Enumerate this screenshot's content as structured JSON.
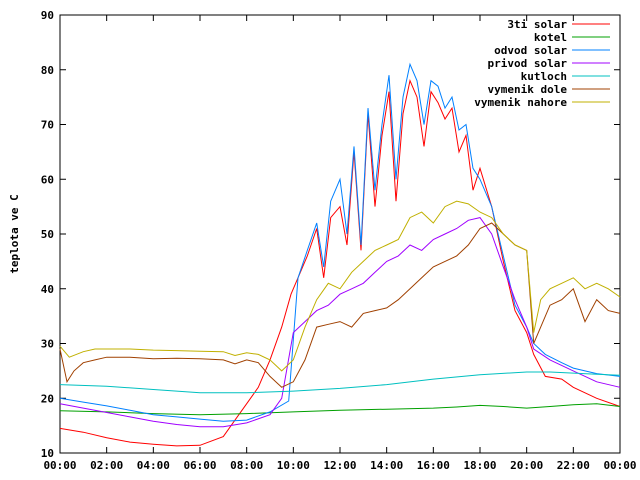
{
  "chart_data": {
    "type": "line",
    "title": "",
    "xlabel": "",
    "ylabel": "teplota ve C",
    "xlim": [
      0,
      24
    ],
    "ylim": [
      10,
      90
    ],
    "grid": false,
    "legend_position": "top-right",
    "x_ticks": [
      0,
      2,
      4,
      6,
      8,
      10,
      12,
      14,
      16,
      18,
      20,
      22,
      24
    ],
    "x_tick_labels": [
      "00:00",
      "02:00",
      "04:00",
      "06:00",
      "08:00",
      "10:00",
      "12:00",
      "14:00",
      "16:00",
      "18:00",
      "20:00",
      "22:00",
      "00:00"
    ],
    "y_ticks": [
      10,
      20,
      30,
      40,
      50,
      60,
      70,
      80,
      90
    ],
    "y_tick_labels": [
      "10",
      "20",
      "30",
      "40",
      "50",
      "60",
      "70",
      "80",
      "90"
    ],
    "series": [
      {
        "name": "3ti solar",
        "color": "#ff0000",
        "x": [
          0,
          1,
          2,
          3,
          4,
          5,
          6,
          7,
          7.5,
          8,
          8.5,
          9,
          9.5,
          9.9,
          10.2,
          10.6,
          11,
          11.3,
          11.6,
          12,
          12.3,
          12.6,
          12.9,
          13.2,
          13.5,
          13.8,
          14.1,
          14.4,
          14.7,
          15,
          15.3,
          15.6,
          15.9,
          16.2,
          16.5,
          16.8,
          17.1,
          17.4,
          17.7,
          18,
          18.5,
          19,
          19.5,
          20,
          20.3,
          20.8,
          21.5,
          22,
          23,
          24
        ],
        "y": [
          14.5,
          13.8,
          12.8,
          12,
          11.6,
          11.3,
          11.4,
          13,
          16,
          19,
          22,
          27,
          33,
          39,
          42,
          46,
          51,
          42,
          53,
          55,
          48,
          65,
          47,
          72,
          55,
          68,
          76,
          56,
          72,
          78,
          75,
          66,
          76,
          74,
          71,
          73,
          65,
          68,
          58,
          62,
          55,
          45,
          36,
          32,
          28,
          24,
          23.5,
          22,
          20,
          18.5
        ]
      },
      {
        "name": "kotel",
        "color": "#00a000",
        "x": [
          0,
          2,
          4,
          6,
          8,
          10,
          12,
          14,
          16,
          17,
          18,
          19,
          20,
          21,
          22,
          23,
          24
        ],
        "y": [
          17.7,
          17.5,
          17.2,
          17,
          17.2,
          17.5,
          17.8,
          18,
          18.2,
          18.4,
          18.7,
          18.5,
          18.2,
          18.5,
          18.8,
          19,
          18.5
        ]
      },
      {
        "name": "odvod solar",
        "color": "#0080ff",
        "x": [
          0,
          1,
          2,
          3,
          4,
          5,
          6,
          7,
          8,
          9,
          9.8,
          10.2,
          10.6,
          11,
          11.3,
          11.6,
          12,
          12.3,
          12.6,
          12.9,
          13.2,
          13.5,
          13.8,
          14.1,
          14.4,
          14.7,
          15,
          15.3,
          15.6,
          15.9,
          16.2,
          16.5,
          16.8,
          17.1,
          17.4,
          17.7,
          18,
          18.5,
          19,
          19.5,
          20,
          20.3,
          20.8,
          21.5,
          22,
          23,
          24
        ],
        "y": [
          20,
          19.3,
          18.6,
          17.8,
          17,
          16.6,
          16.2,
          15.8,
          16,
          17.5,
          19.5,
          42,
          47,
          52,
          44,
          56,
          60,
          50,
          66,
          48,
          73,
          58,
          70,
          79,
          60,
          75,
          81,
          78,
          70,
          78,
          77,
          73,
          75,
          69,
          70,
          62,
          60,
          55,
          46,
          37,
          33,
          30,
          28,
          26.5,
          25.5,
          24.5,
          24
        ]
      },
      {
        "name": "privod solar",
        "color": "#a000ff",
        "x": [
          0,
          1,
          2,
          3,
          4,
          5,
          6,
          7,
          8,
          9,
          9.5,
          10,
          10.5,
          11,
          11.5,
          12,
          12.5,
          13,
          13.5,
          14,
          14.5,
          15,
          15.5,
          16,
          16.5,
          17,
          17.5,
          18,
          18.5,
          19,
          19.5,
          20,
          20.3,
          21,
          22,
          23,
          24
        ],
        "y": [
          19,
          18.2,
          17.4,
          16.6,
          15.8,
          15.2,
          14.8,
          14.8,
          15.5,
          17,
          20,
          32,
          34,
          36,
          37,
          39,
          40,
          41,
          43,
          45,
          46,
          48,
          47,
          49,
          50,
          51,
          52.5,
          53,
          50,
          44,
          38,
          33,
          29,
          27,
          25,
          23,
          22
        ]
      },
      {
        "name": "kutloch",
        "color": "#00c0c0",
        "x": [
          0,
          2,
          4,
          6,
          8,
          10,
          12,
          14,
          16,
          18,
          20,
          21,
          22,
          23,
          24
        ],
        "y": [
          22.5,
          22.2,
          21.6,
          21,
          21,
          21.3,
          21.8,
          22.5,
          23.5,
          24.3,
          24.8,
          24.8,
          24.6,
          24.4,
          24.2
        ]
      },
      {
        "name": "vymenik dole",
        "color": "#a04000",
        "x": [
          0,
          0.3,
          0.6,
          1,
          1.5,
          2,
          3,
          4,
          5,
          6,
          7,
          7.5,
          8,
          8.5,
          9,
          9.5,
          10,
          10.5,
          11,
          11.5,
          12,
          12.5,
          13,
          13.5,
          14,
          14.5,
          15,
          15.5,
          16,
          16.5,
          17,
          17.5,
          18,
          18.5,
          19,
          19.5,
          20,
          20.3,
          20.6,
          21,
          21.5,
          22,
          22.5,
          23,
          23.5,
          24
        ],
        "y": [
          29,
          23,
          25,
          26.5,
          27,
          27.5,
          27.5,
          27.2,
          27.3,
          27.2,
          27,
          26.3,
          27,
          26.5,
          24,
          22,
          23,
          27,
          33,
          33.5,
          34,
          33,
          35.5,
          36,
          36.5,
          38,
          40,
          42,
          44,
          45,
          46,
          48,
          51,
          52,
          50,
          48,
          47,
          30,
          33,
          37,
          38,
          40,
          34,
          38,
          36,
          35.5
        ]
      },
      {
        "name": "vymenik nahore",
        "color": "#c0b000",
        "x": [
          0,
          0.4,
          1,
          1.5,
          2,
          3,
          4,
          5,
          6,
          7,
          7.5,
          8,
          8.5,
          9,
          9.5,
          10,
          10.5,
          11,
          11.5,
          12,
          12.5,
          13,
          13.5,
          14,
          14.5,
          15,
          15.5,
          16,
          16.5,
          17,
          17.5,
          18,
          18.5,
          19,
          19.5,
          20,
          20.3,
          20.6,
          21,
          21.5,
          22,
          22.5,
          23,
          23.5,
          24
        ],
        "y": [
          29.5,
          27.5,
          28.5,
          29,
          29,
          29,
          28.8,
          28.7,
          28.6,
          28.5,
          27.8,
          28.3,
          28,
          27,
          25,
          27,
          33,
          38,
          41,
          40,
          43,
          45,
          47,
          48,
          49,
          53,
          54,
          52,
          55,
          56,
          55.5,
          54,
          53,
          50,
          48,
          47,
          32,
          38,
          40,
          41,
          42,
          40,
          41,
          40,
          38.5
        ]
      }
    ]
  }
}
